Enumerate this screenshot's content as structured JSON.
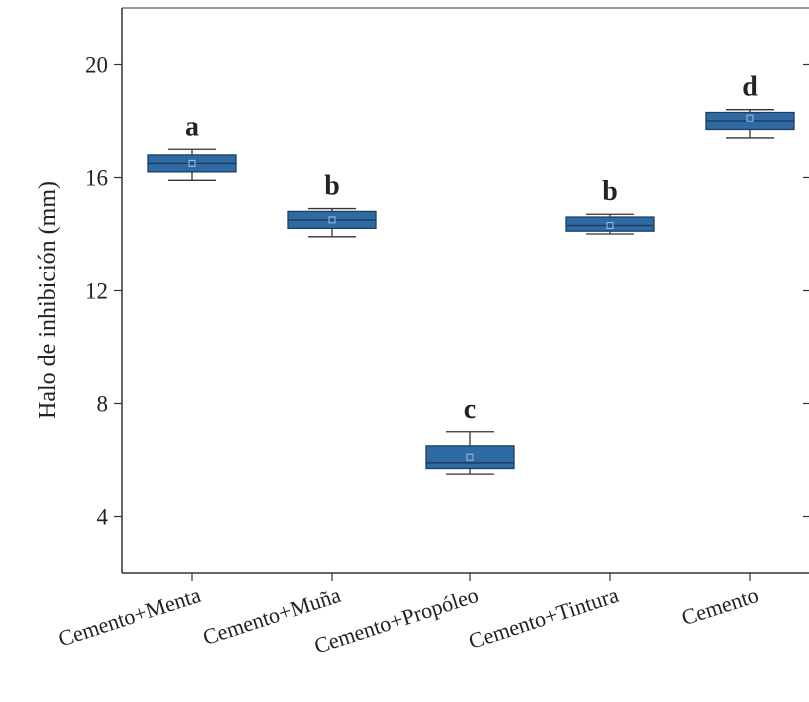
{
  "chart_data": {
    "type": "box",
    "ylabel": "Halo de inhibición (mm)",
    "xlabel": "",
    "ylim": [
      2,
      22
    ],
    "yticks": [
      4,
      8,
      12,
      16,
      20
    ],
    "categories": [
      "Cemento+Menta",
      "Cemento+Muña",
      "Cemento+Propóleo",
      "Cemento+Tintura",
      "Cemento"
    ],
    "boxes": [
      {
        "category": "Cemento+Menta",
        "min": 15.9,
        "q1": 16.2,
        "median": 16.5,
        "mean": 16.5,
        "q3": 16.8,
        "max": 17.0,
        "group_letter": "a"
      },
      {
        "category": "Cemento+Muña",
        "min": 13.9,
        "q1": 14.2,
        "median": 14.5,
        "mean": 14.5,
        "q3": 14.8,
        "max": 14.9,
        "group_letter": "b"
      },
      {
        "category": "Cemento+Propóleo",
        "min": 5.5,
        "q1": 5.7,
        "median": 5.9,
        "mean": 6.1,
        "q3": 6.5,
        "max": 7.0,
        "group_letter": "c"
      },
      {
        "category": "Cemento+Tintura",
        "min": 14.0,
        "q1": 14.1,
        "median": 14.3,
        "mean": 14.3,
        "q3": 14.6,
        "max": 14.7,
        "group_letter": "b"
      },
      {
        "category": "Cemento",
        "min": 17.4,
        "q1": 17.7,
        "median": 18.0,
        "mean": 18.1,
        "q3": 18.3,
        "max": 18.4,
        "group_letter": "d"
      }
    ],
    "colors": {
      "box_fill": "#2f6aa3",
      "box_stroke": "#1d3f66",
      "median": "#1d3f66",
      "whisker": "#333333",
      "axis": "#333333"
    }
  }
}
